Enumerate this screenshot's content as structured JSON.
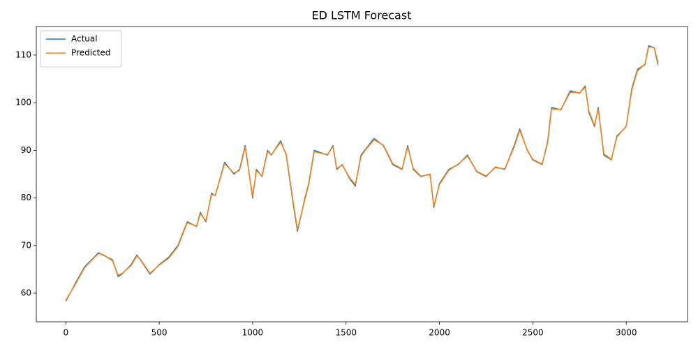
{
  "chart_data": {
    "type": "line",
    "title": "ED LSTM Forecast",
    "x": [
      0,
      50,
      100,
      150,
      175,
      200,
      250,
      280,
      300,
      350,
      380,
      400,
      450,
      500,
      550,
      600,
      650,
      700,
      720,
      750,
      780,
      800,
      850,
      900,
      930,
      960,
      1000,
      1020,
      1050,
      1080,
      1100,
      1150,
      1180,
      1220,
      1240,
      1280,
      1300,
      1330,
      1400,
      1430,
      1450,
      1480,
      1520,
      1550,
      1580,
      1600,
      1650,
      1700,
      1750,
      1800,
      1830,
      1860,
      1900,
      1950,
      1970,
      2000,
      2050,
      2100,
      2150,
      2200,
      2250,
      2300,
      2350,
      2400,
      2430,
      2470,
      2500,
      2550,
      2580,
      2600,
      2650,
      2700,
      2750,
      2780,
      2800,
      2830,
      2850,
      2880,
      2920,
      2950,
      3000,
      3030,
      3060,
      3100,
      3120,
      3150,
      3170
    ],
    "series": [
      {
        "name": "Actual",
        "color": "#1f77b4",
        "values": [
          58.3,
          62,
          65.5,
          67.5,
          68.5,
          68,
          67,
          63.5,
          64,
          66,
          68,
          67,
          64,
          66,
          67.5,
          70,
          75,
          74,
          77,
          75,
          81,
          80.5,
          87.5,
          85,
          86,
          91,
          80,
          86,
          84.5,
          90,
          89,
          92,
          89,
          78,
          73,
          80,
          83,
          90,
          89,
          91,
          86,
          87,
          84,
          82.5,
          89,
          90,
          92.5,
          91,
          87,
          86,
          91,
          86,
          84.5,
          85,
          78,
          83,
          86,
          87,
          89,
          85.5,
          84.5,
          86.5,
          86,
          91,
          94.5,
          90,
          88,
          87,
          92,
          99,
          98.5,
          102.5,
          102,
          103.5,
          98,
          95,
          99,
          89,
          88,
          93,
          95,
          103,
          107,
          108,
          112,
          111.5,
          108
        ]
      },
      {
        "name": "Predicted",
        "color": "#ff7f0e",
        "values": [
          58.5,
          61.8,
          65.3,
          67.4,
          68.3,
          68.1,
          66.8,
          63.8,
          64.1,
          65.8,
          67.8,
          67.1,
          64.2,
          65.9,
          67.3,
          69.8,
          74.8,
          74.1,
          76.7,
          75.2,
          80.7,
          80.6,
          87.2,
          85.2,
          85.8,
          90.7,
          80.3,
          85.7,
          84.6,
          89.7,
          89.1,
          91.7,
          89.2,
          78.4,
          73.4,
          79.7,
          82.8,
          89.7,
          89.1,
          90.8,
          86.2,
          86.9,
          84.2,
          82.8,
          88.7,
          89.9,
          92.2,
          91.1,
          87.2,
          86.1,
          90.7,
          86.2,
          84.6,
          84.9,
          78.3,
          82.8,
          85.8,
          87.1,
          88.8,
          85.6,
          84.6,
          86.4,
          86.1,
          90.7,
          94.2,
          90.1,
          88.1,
          87.1,
          91.7,
          98.7,
          98.6,
          102.2,
          102.1,
          103.2,
          98.3,
          95.2,
          98.7,
          89.3,
          88.1,
          92.8,
          95.1,
          102.7,
          106.7,
          108.1,
          111.7,
          111.6,
          108.4
        ]
      }
    ],
    "xlim": [
      -158,
      3328
    ],
    "ylim": [
      54,
      116
    ],
    "xticks": [
      0,
      500,
      1000,
      1500,
      2000,
      2500,
      3000
    ],
    "yticks": [
      60,
      70,
      80,
      90,
      100,
      110
    ],
    "grid": false,
    "legend": "upper left"
  }
}
